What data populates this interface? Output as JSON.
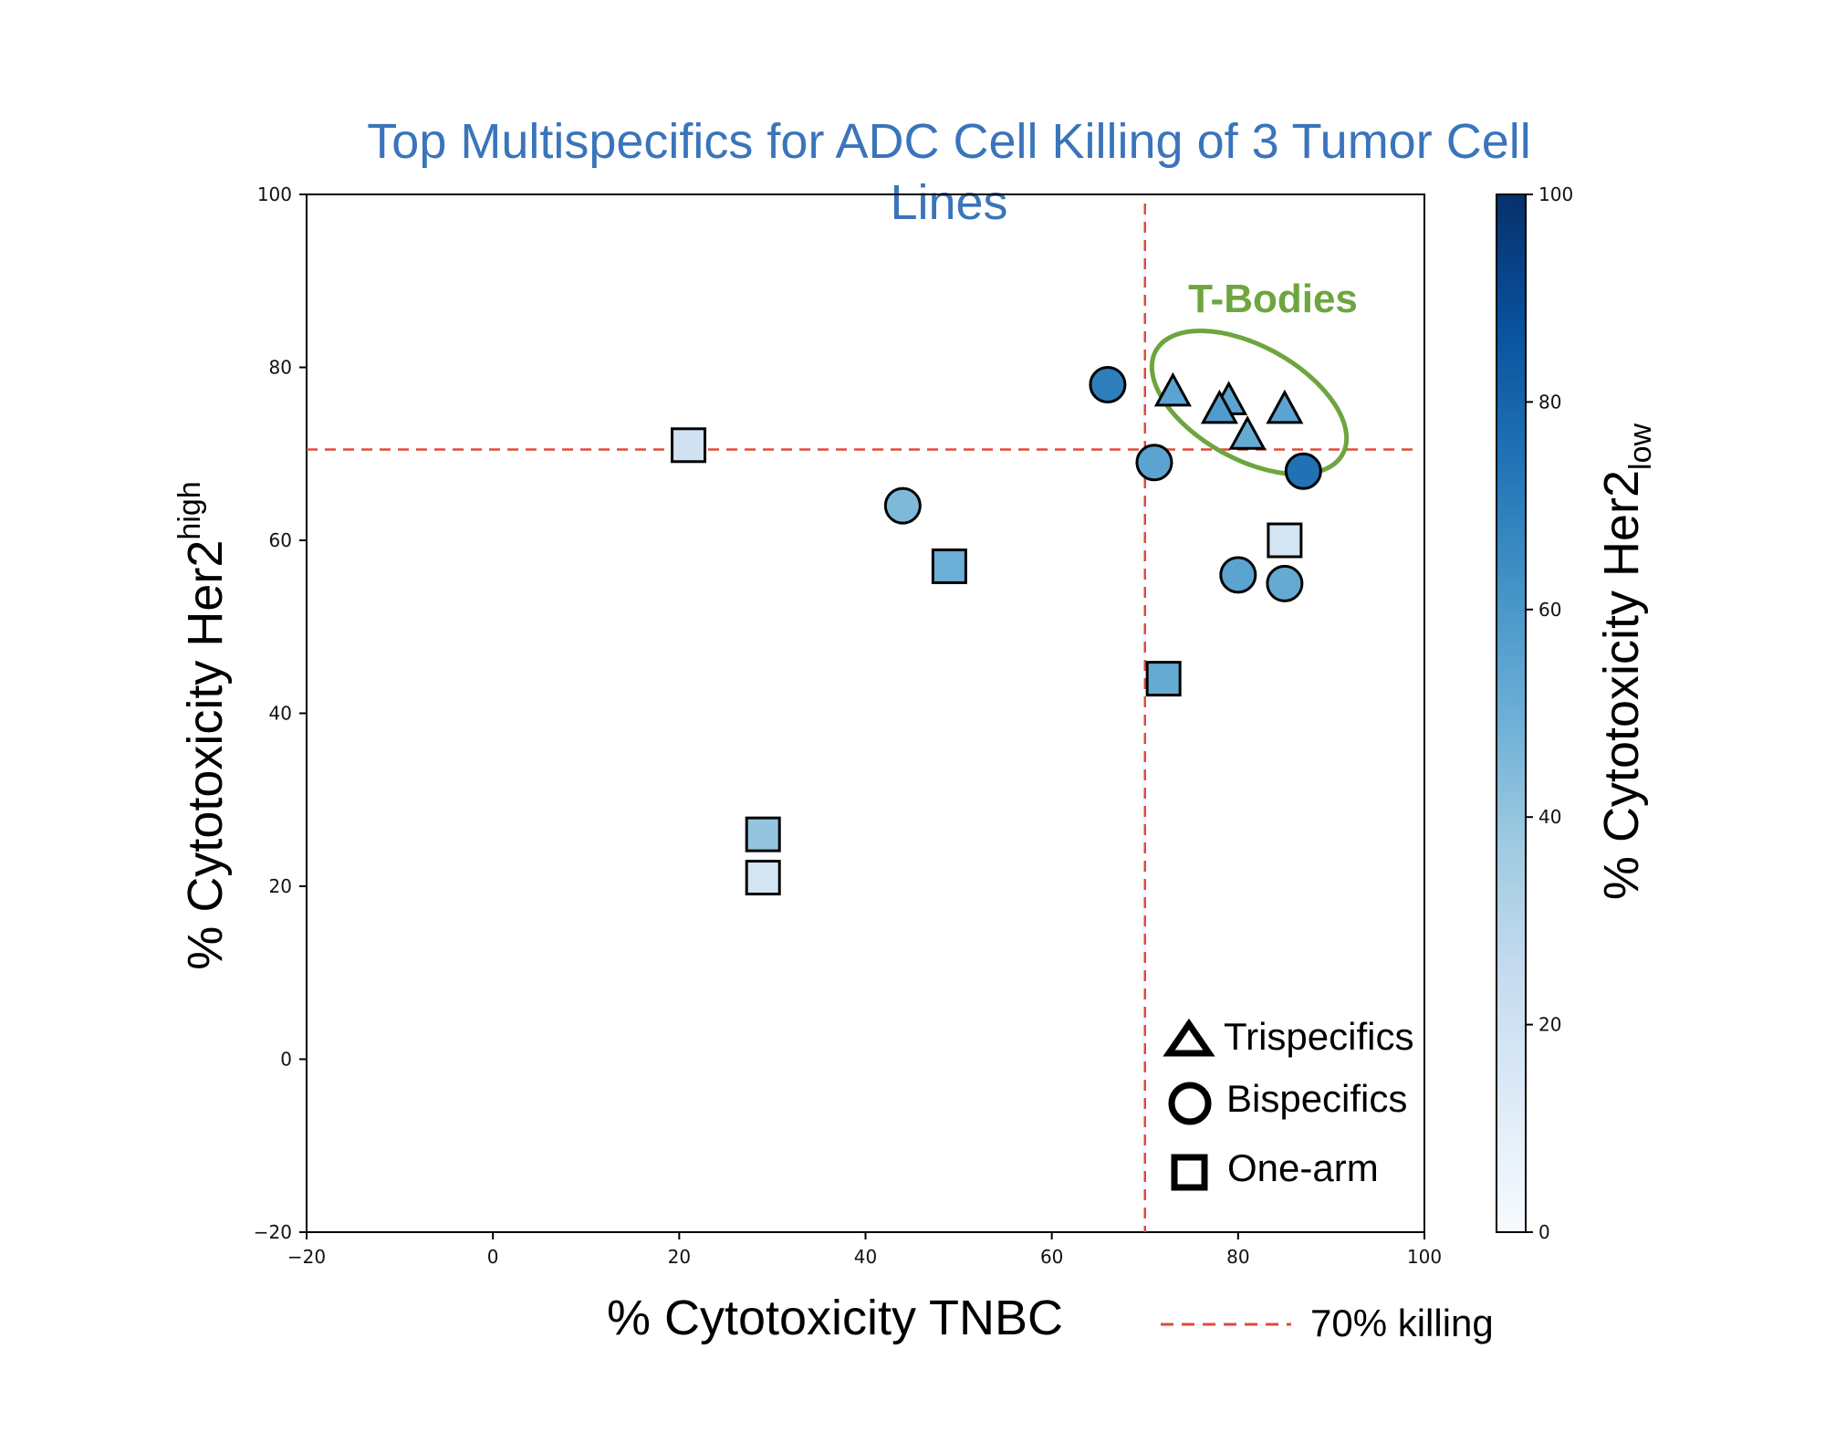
{
  "chart_data": {
    "type": "scatter",
    "title": "Top Multispecifics for ADC Cell Killing of 3 Tumor Cell Lines",
    "title_lines": [
      "Top Multispecifics for ADC Cell Killing of 3 Tumor Cell",
      "Lines"
    ],
    "xlabel": "% Cytotoxicity TNBC",
    "ylabel": {
      "base": "% Cytotoxicity Her2",
      "superscript": "high"
    },
    "colorbar_label": {
      "base": "% Cytotoxicity Her2",
      "subscript": "low"
    },
    "xlim": [
      -20,
      100
    ],
    "ylim": [
      -20,
      100
    ],
    "clim": [
      0,
      100
    ],
    "xticks": [
      -20,
      0,
      20,
      40,
      60,
      80,
      100
    ],
    "yticks": [
      -20,
      0,
      20,
      40,
      60,
      80,
      100
    ],
    "cticks": [
      0,
      20,
      40,
      60,
      80,
      100
    ],
    "xtick_labels": [
      "−20",
      "0",
      "20",
      "40",
      "60",
      "80",
      "100"
    ],
    "ytick_labels": [
      "−20",
      "0",
      "20",
      "40",
      "60",
      "80",
      "100"
    ],
    "ctick_labels": [
      "0",
      "20",
      "40",
      "60",
      "80",
      "100"
    ],
    "grid": false,
    "colormap": "Blues",
    "threshold": {
      "x": 70,
      "y": 70.5,
      "label": "70% killing",
      "color": "#e04a3a"
    },
    "annotation": {
      "text": "T-Bodies",
      "color": "#6ea53f"
    },
    "legend": {
      "placement": "lower-right",
      "entries": [
        {
          "marker": "triangle",
          "label": "Trispecifics"
        },
        {
          "marker": "circle",
          "label": "Bispecifics"
        },
        {
          "marker": "square",
          "label": "One-arm"
        }
      ]
    },
    "series": [
      {
        "name": "Trispecifics",
        "marker": "triangle",
        "points": [
          {
            "x": 73,
            "y": 77,
            "c": 55
          },
          {
            "x": 79,
            "y": 76,
            "c": 55
          },
          {
            "x": 78,
            "y": 75,
            "c": 58
          },
          {
            "x": 85,
            "y": 75,
            "c": 55
          },
          {
            "x": 81,
            "y": 72,
            "c": 52
          }
        ]
      },
      {
        "name": "Bispecifics",
        "marker": "circle",
        "points": [
          {
            "x": 66,
            "y": 78,
            "c": 70
          },
          {
            "x": 71,
            "y": 69,
            "c": 55
          },
          {
            "x": 87,
            "y": 68,
            "c": 75
          },
          {
            "x": 44,
            "y": 64,
            "c": 45
          },
          {
            "x": 80,
            "y": 56,
            "c": 55
          },
          {
            "x": 85,
            "y": 55,
            "c": 52
          }
        ]
      },
      {
        "name": "One-arm",
        "marker": "square",
        "points": [
          {
            "x": 21,
            "y": 71,
            "c": 20
          },
          {
            "x": 49,
            "y": 57,
            "c": 50
          },
          {
            "x": 85,
            "y": 60,
            "c": 18
          },
          {
            "x": 72,
            "y": 44,
            "c": 52
          },
          {
            "x": 29,
            "y": 26,
            "c": 40
          },
          {
            "x": 29,
            "y": 21,
            "c": 18
          }
        ]
      }
    ]
  }
}
